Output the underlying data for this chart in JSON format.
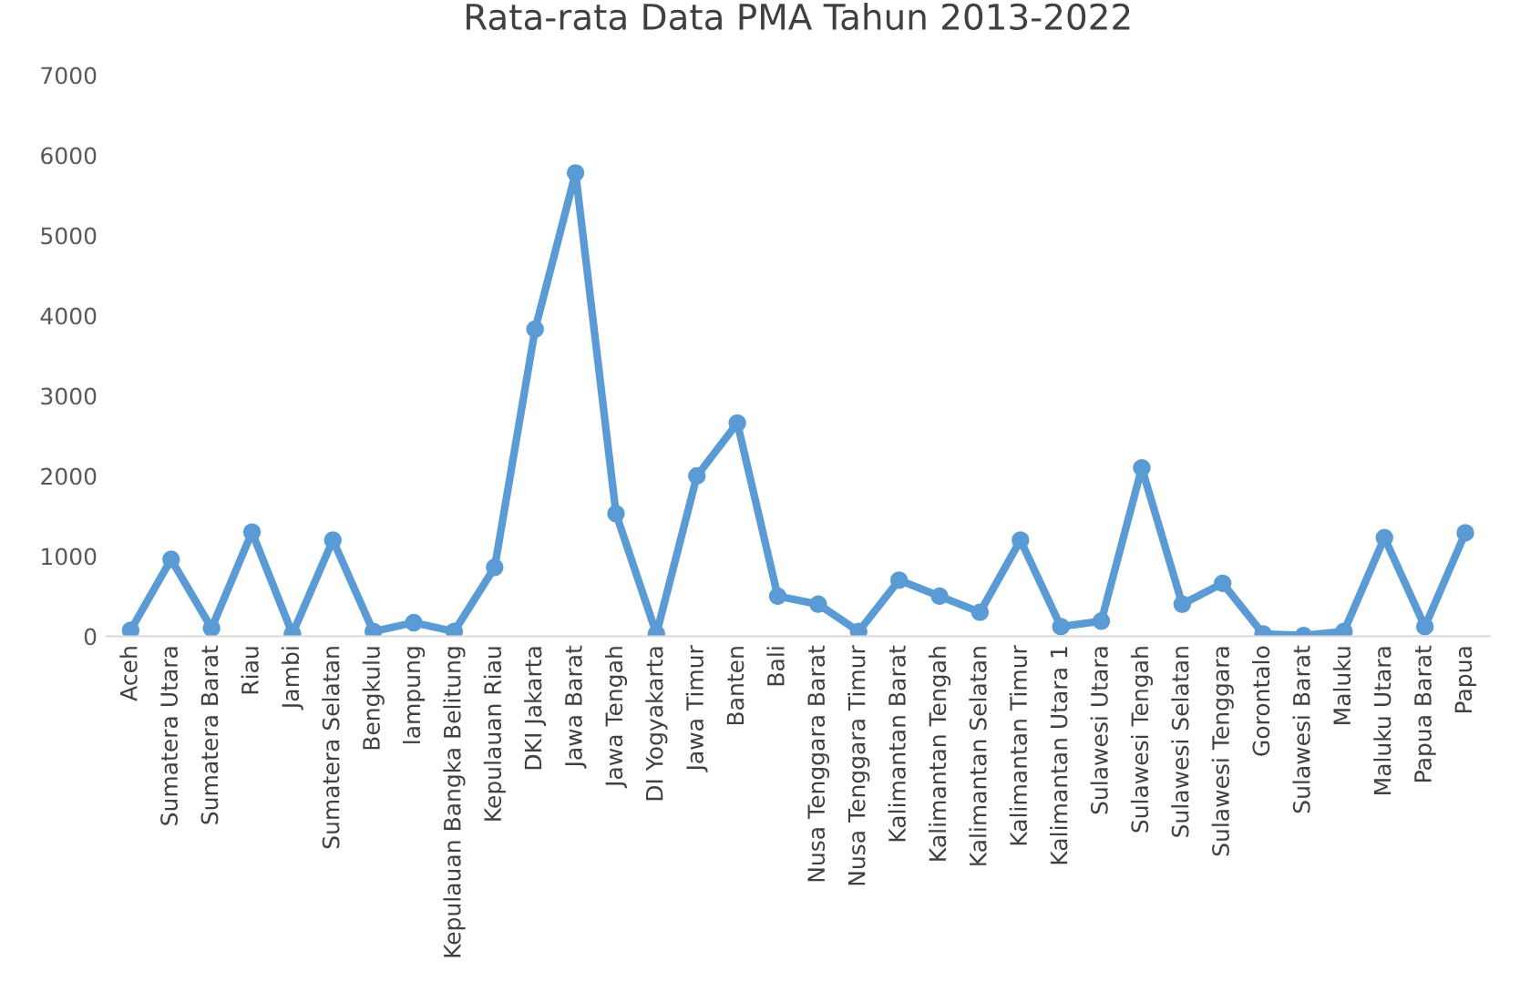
{
  "chart_data": {
    "type": "line",
    "title": "Rata-rata Data PMA Tahun 2013-2022",
    "categories": [
      "Aceh",
      "Sumatera Utara",
      "Sumatera Barat",
      "Riau",
      "Jambi",
      "Sumatera Selatan",
      "Bengkulu",
      "lampung",
      "Kepulauan Bangka Belitung",
      "Kepulauan Riau",
      "DKI Jakarta",
      "Jawa Barat",
      "Jawa Tengah",
      "DI Yogyakarta",
      "Jawa Timur",
      "Banten",
      "Bali",
      "Nusa Tenggara Barat",
      "Nusa Tenggara Timur",
      "Kalimantan Barat",
      "Kalimantan Tengah",
      "Kalimantan Selatan",
      "Kalimantan Timur",
      "Kalimantan Utara 1",
      "Sulawesi Utara",
      "Sulawesi Tengah",
      "Sulawesi Selatan",
      "Sulawesi Tenggara",
      "Gorontalo",
      "Sulawesi Barat",
      "Maluku",
      "Maluku Utara",
      "Papua Barat",
      "Papua"
    ],
    "series": [
      {
        "color": "#5b9bd5",
        "values": [
          75,
          960,
          100,
          1300,
          30,
          1200,
          60,
          170,
          60,
          860,
          3830,
          5780,
          1530,
          30,
          2000,
          2660,
          500,
          400,
          60,
          700,
          500,
          300,
          1200,
          120,
          190,
          2100,
          400,
          660,
          30,
          10,
          60,
          1230,
          120,
          1290
        ]
      }
    ],
    "ylim": [
      0,
      7000
    ],
    "yticks": [
      0,
      1000,
      2000,
      3000,
      4000,
      5000,
      6000,
      7000
    ],
    "grid": false,
    "legend": false,
    "marker": "circle",
    "line_style": "solid"
  }
}
